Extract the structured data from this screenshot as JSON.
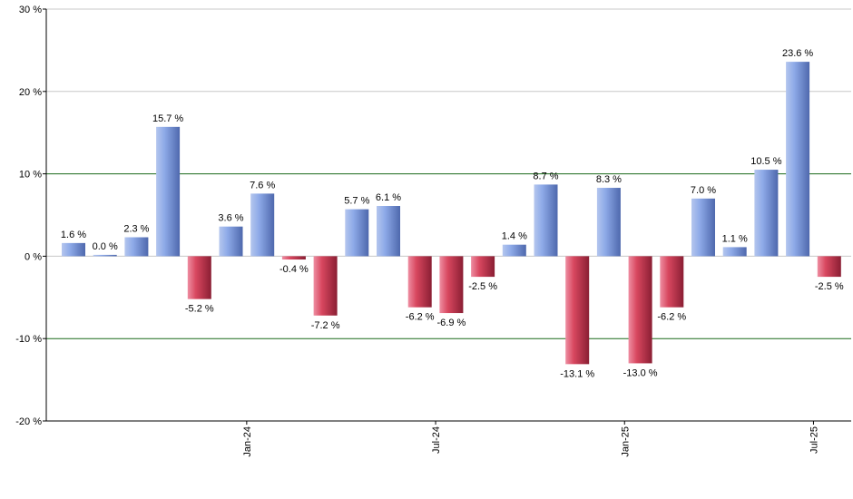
{
  "chart_data": {
    "type": "bar",
    "title": "",
    "xlabel": "",
    "ylabel": "",
    "ylim": [
      -20,
      30
    ],
    "y_ticks": [
      -20,
      -10,
      0,
      10,
      20,
      30
    ],
    "y_tick_labels": [
      "-20 %",
      "-10 %",
      "0 %",
      "10 %",
      "20 %",
      "30 %"
    ],
    "x_tick_labels": [
      {
        "label": "Jan-24",
        "at_index": 5.5
      },
      {
        "label": "Jul-24",
        "at_index": 11.5
      },
      {
        "label": "Jan-25",
        "at_index": 17.5
      },
      {
        "label": "Jul-25",
        "at_index": 23.5
      }
    ],
    "values": [
      1.6,
      0.0,
      2.3,
      15.7,
      -5.2,
      3.6,
      7.6,
      -0.4,
      -7.2,
      5.7,
      6.1,
      -6.2,
      -6.9,
      -2.5,
      1.4,
      8.7,
      -13.1,
      8.3,
      -13.0,
      -6.2,
      7.0,
      1.1,
      10.5,
      23.6,
      -2.5
    ],
    "value_labels": [
      "1.6 %",
      "0.0 %",
      "2.3 %",
      "15.7 %",
      "-5.2 %",
      "3.6 %",
      "7.6 %",
      "-0.4 %",
      "-7.2 %",
      "5.7 %",
      "6.1 %",
      "-6.2 %",
      "-6.9 %",
      "-2.5 %",
      "1.4 %",
      "8.7 %",
      "-13.1 %",
      "8.3 %",
      "-13.0 %",
      "-6.2 %",
      "7.0 %",
      "1.1 %",
      "10.5 %",
      "23.6 %",
      "-2.5 %"
    ],
    "colors": {
      "positive": "#6f8fd6",
      "negative": "#c8354f",
      "grid": "#c8c8c8",
      "threshold_line": "#1a6a1a",
      "axis": "#000000"
    },
    "threshold_lines": [
      10,
      -10
    ],
    "grid": true,
    "legend": "none"
  }
}
